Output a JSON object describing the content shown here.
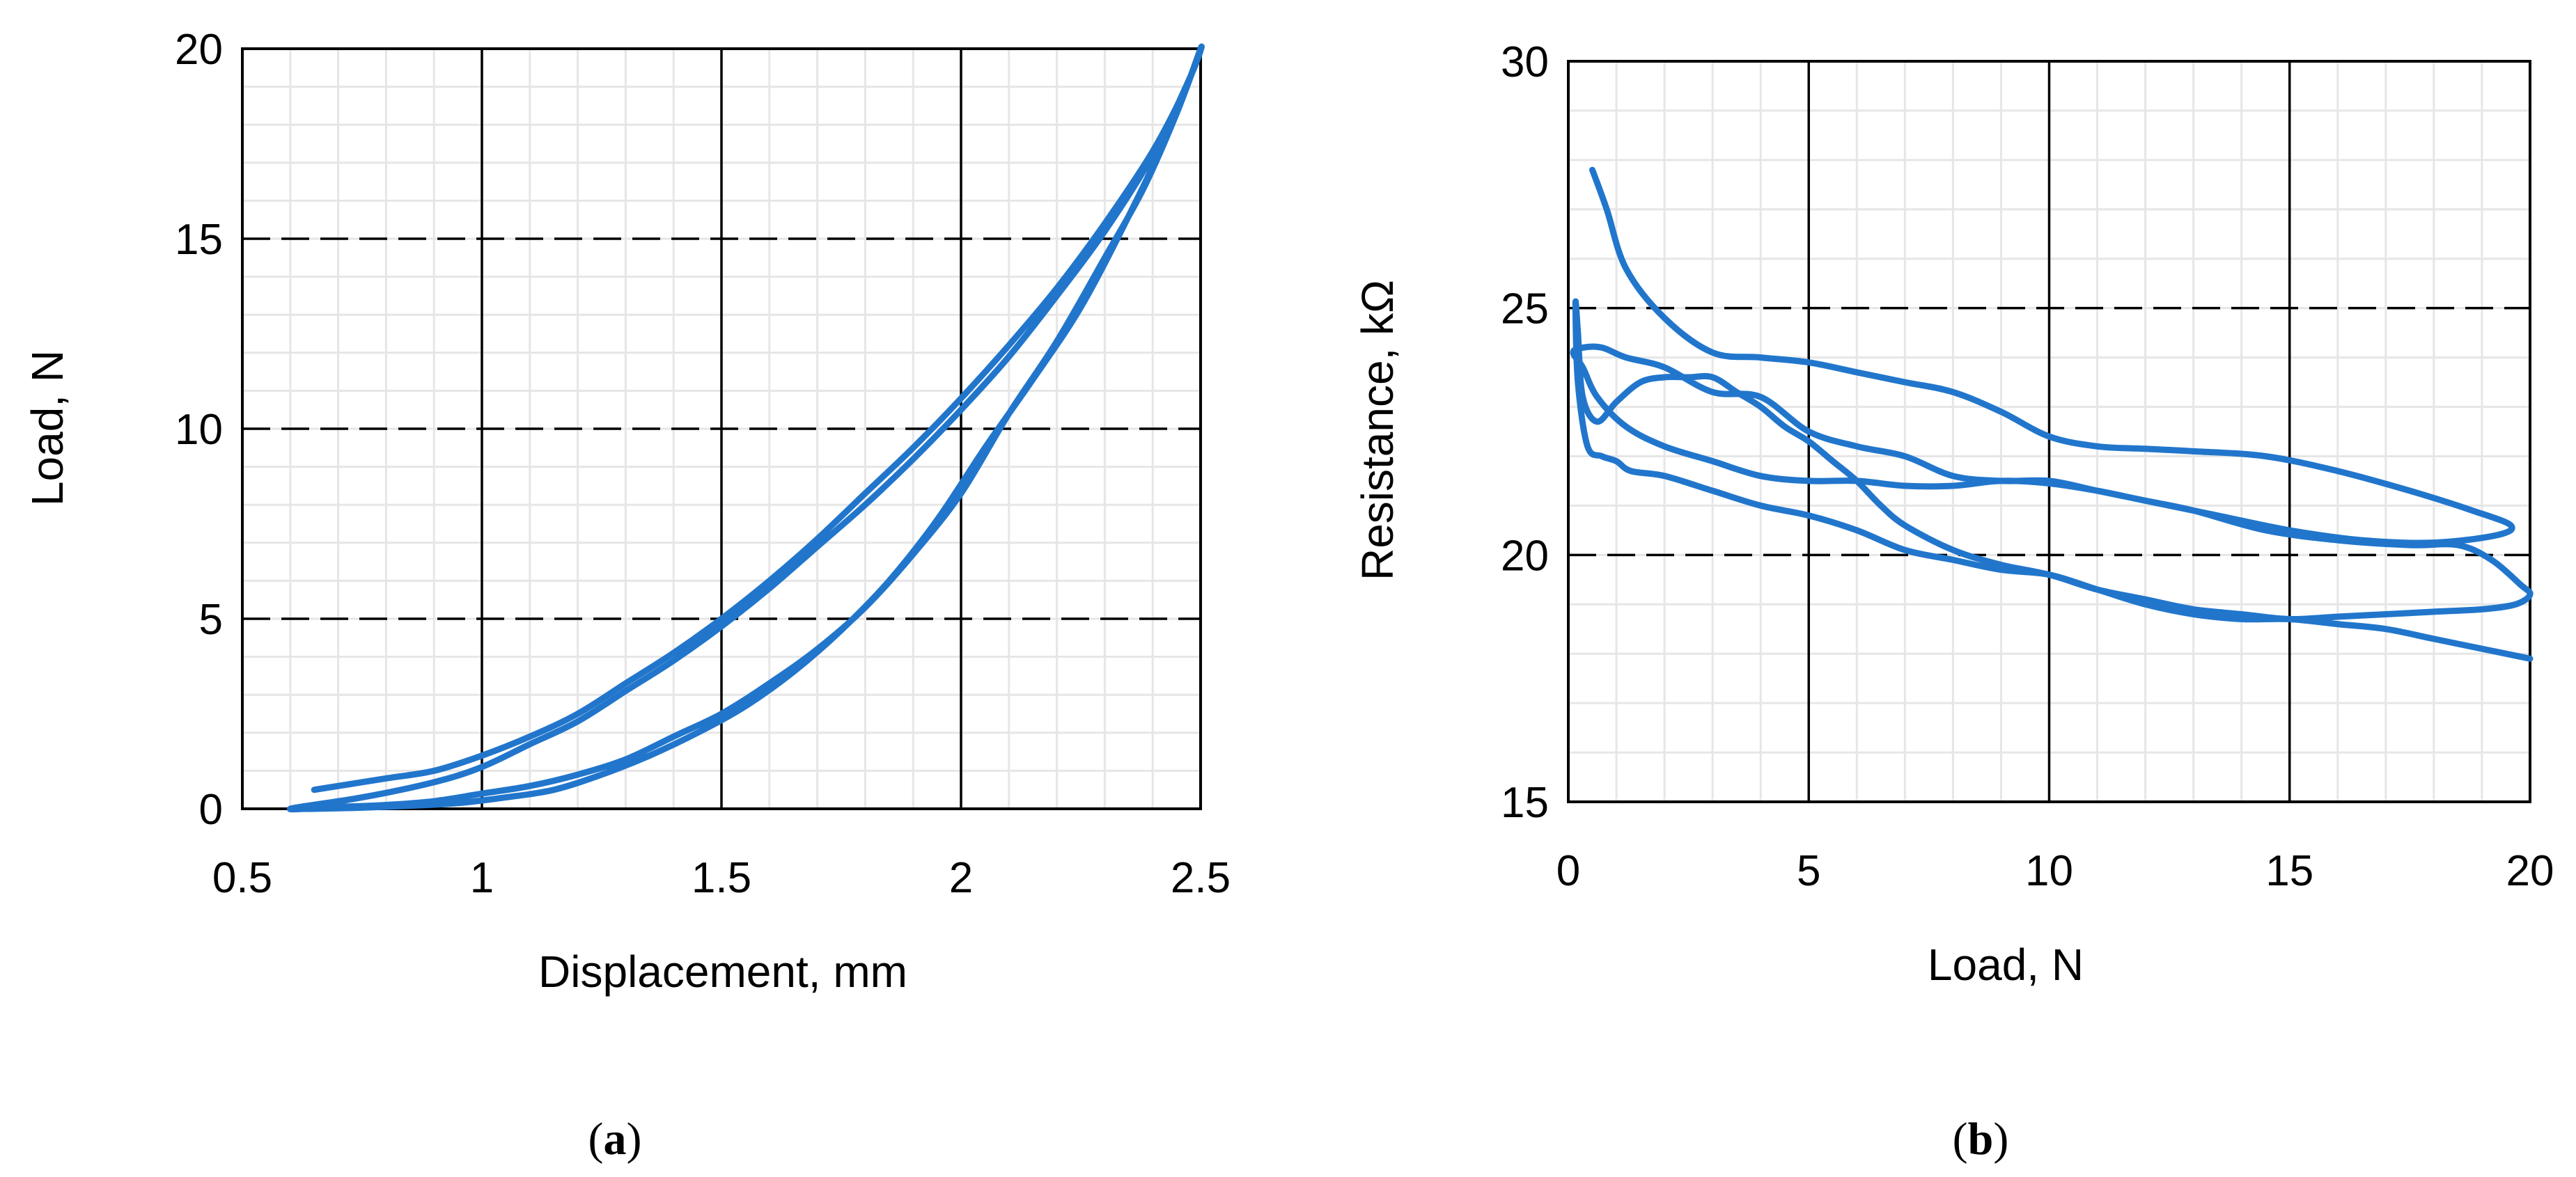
{
  "panels": [
    {
      "caption_open": "(",
      "caption_letter": "a",
      "caption_close": ")"
    },
    {
      "caption_open": "(",
      "caption_letter": "b",
      "caption_close": ")"
    }
  ],
  "chart_data": [
    {
      "type": "line",
      "title": "",
      "xlabel": "Displacement, mm",
      "ylabel": "Load, N",
      "xlim": [
        0.5,
        2.5
      ],
      "ylim": [
        0,
        20
      ],
      "x_ticks": [
        "0.5",
        "1",
        "1.5",
        "2",
        "2.5"
      ],
      "y_ticks": [
        "0",
        "5",
        "10",
        "15",
        "20"
      ],
      "grid": true,
      "legend": "none",
      "color": "#2176cc",
      "series": [
        {
          "x": [
            0.65,
            0.8,
            0.9,
            1.0,
            1.1,
            1.2,
            1.3,
            1.4,
            1.5,
            1.6,
            1.7,
            1.8,
            1.9,
            2.0,
            2.1,
            2.2,
            2.3,
            2.4,
            2.47,
            2.5,
            2.45,
            2.38,
            2.3,
            2.2,
            2.1,
            2.0,
            1.9,
            1.8,
            1.7,
            1.6,
            1.5,
            1.4,
            1.3,
            1.2,
            1.1,
            1.0,
            0.9,
            0.8,
            0.7,
            0.6,
            0.75,
            0.9,
            1.0,
            1.1,
            1.2,
            1.3,
            1.4,
            1.5,
            1.6,
            1.7,
            1.8,
            1.9,
            2.0,
            2.1,
            2.2,
            2.3,
            2.4,
            2.48,
            2.5,
            2.44,
            2.35,
            2.25,
            2.15,
            2.05,
            1.95,
            1.85,
            1.75,
            1.65,
            1.55,
            1.45,
            1.35,
            1.25,
            1.15,
            1.05,
            0.95,
            0.85,
            0.75,
            0.65,
            0.6
          ],
          "y": [
            0.5,
            0.8,
            1.0,
            1.4,
            1.9,
            2.5,
            3.3,
            4.1,
            5.0,
            6.0,
            7.1,
            8.3,
            9.5,
            10.8,
            12.2,
            13.7,
            15.4,
            17.3,
            19.0,
            20.0,
            18.3,
            16.3,
            14.5,
            12.3,
            10.4,
            8.3,
            6.7,
            5.3,
            4.2,
            3.3,
            2.5,
            1.9,
            1.3,
            0.9,
            0.6,
            0.4,
            0.2,
            0.1,
            0.05,
            0.0,
            0.3,
            0.7,
            1.1,
            1.7,
            2.3,
            3.1,
            3.9,
            4.8,
            5.8,
            6.9,
            8.0,
            9.2,
            10.5,
            11.9,
            13.5,
            15.2,
            17.2,
            19.3,
            20.0,
            18.0,
            15.6,
            13.2,
            11.3,
            9.5,
            7.6,
            6.0,
            4.7,
            3.6,
            2.7,
            2.0,
            1.4,
            0.9,
            0.5,
            0.3,
            0.15,
            0.08,
            0.03,
            0.0,
            0.0
          ]
        }
      ]
    },
    {
      "type": "line",
      "title": "",
      "xlabel": "Load, N",
      "ylabel": "Resistance, kΩ",
      "xlim": [
        0,
        20
      ],
      "ylim": [
        15,
        30
      ],
      "x_ticks": [
        "0",
        "5",
        "10",
        "15",
        "20"
      ],
      "y_ticks": [
        "15",
        "20",
        "25",
        "30"
      ],
      "grid": true,
      "legend": "none",
      "color": "#2176cc",
      "series": [
        {
          "x": [
            0.5,
            0.8,
            1.2,
            2.0,
            3.0,
            4.0,
            5.0,
            6.0,
            7.0,
            8.0,
            9.0,
            10.0,
            11.0,
            12.0,
            13.0,
            14.5,
            16.0,
            17.5,
            18.8,
            19.6,
            19.3,
            18.0,
            16.5,
            15.0,
            13.5,
            12.0,
            11.0,
            10.0,
            9.0,
            8.0,
            7.0,
            6.0,
            5.0,
            4.0,
            3.0,
            2.0,
            1.2,
            0.6,
            0.3,
            0.1,
            0.3,
            0.7,
            1.2,
            2.0,
            3.0,
            4.0,
            5.0,
            6.0,
            7.0,
            8.0,
            9.0,
            10.0,
            11.0,
            12.0,
            13.0,
            14.5,
            16.0,
            17.5,
            18.5,
            19.2,
            19.8,
            20.0,
            19.7,
            19.0,
            18.0,
            17.0,
            16.0,
            15.0,
            14.0,
            13.0,
            12.0,
            11.0,
            10.0,
            9.0,
            8.0,
            7.0,
            6.5,
            6.0,
            5.5,
            5.0,
            4.5,
            4.0,
            3.5,
            3.0,
            2.5,
            2.0,
            1.5,
            1.0,
            0.6,
            0.3,
            0.2,
            0.15,
            0.2,
            0.4,
            0.7,
            1.0,
            1.3,
            2.0,
            3.0,
            4.0,
            5.0,
            6.0,
            7.0,
            8.0,
            9.0,
            10.0,
            11.0,
            12.0,
            13.0,
            14.0,
            15.0,
            16.0,
            17.0,
            18.0,
            19.0,
            20.0
          ],
          "y": [
            27.8,
            27.0,
            25.8,
            24.8,
            24.1,
            24.0,
            23.9,
            23.7,
            23.5,
            23.3,
            22.9,
            22.4,
            22.2,
            22.15,
            22.1,
            22.0,
            21.7,
            21.3,
            20.9,
            20.6,
            20.4,
            20.25,
            20.3,
            20.5,
            20.8,
            21.1,
            21.3,
            21.45,
            21.5,
            21.4,
            21.4,
            21.5,
            21.5,
            21.6,
            21.9,
            22.2,
            22.6,
            23.2,
            23.8,
            24.1,
            24.2,
            24.2,
            24.0,
            23.8,
            23.3,
            23.2,
            22.5,
            22.2,
            22.0,
            21.6,
            21.5,
            21.5,
            21.3,
            21.1,
            20.9,
            20.5,
            20.3,
            20.2,
            20.2,
            19.9,
            19.4,
            19.2,
            19.0,
            18.9,
            18.85,
            18.8,
            18.75,
            18.7,
            18.8,
            18.9,
            19.1,
            19.3,
            19.6,
            19.8,
            20.1,
            20.6,
            21.0,
            21.5,
            21.9,
            22.3,
            22.6,
            23.0,
            23.3,
            23.6,
            23.6,
            23.6,
            23.5,
            23.1,
            22.7,
            23.2,
            24.5,
            25.1,
            23.5,
            22.2,
            22.0,
            21.9,
            21.7,
            21.6,
            21.3,
            21.0,
            20.8,
            20.5,
            20.1,
            19.9,
            19.7,
            19.6,
            19.3,
            19.0,
            18.8,
            18.7,
            18.7,
            18.6,
            18.5,
            18.3,
            18.1,
            17.9
          ]
        }
      ]
    }
  ]
}
